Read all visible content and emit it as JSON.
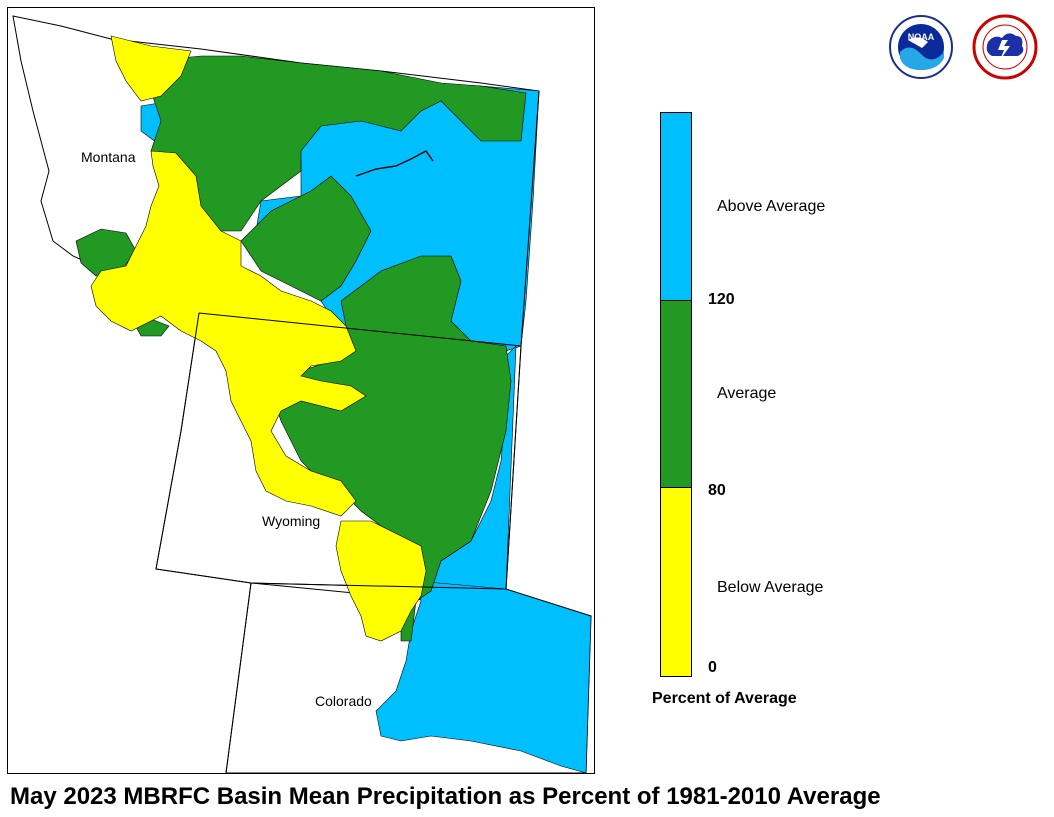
{
  "title": "May 2023 MBRFC Basin Mean Precipitation as Percent of 1981-2010 Average",
  "states": {
    "montana": "Montana",
    "wyoming": "Wyoming",
    "colorado": "Colorado"
  },
  "legend": {
    "caption": "Percent of Average",
    "categories": [
      {
        "label": "Above Average",
        "range": [
          120,
          null
        ],
        "color": "#00bfff"
      },
      {
        "label": "Average",
        "range": [
          80,
          120
        ],
        "color": "#229922"
      },
      {
        "label": "Below Average",
        "range": [
          0,
          80
        ],
        "color": "#ffff00"
      }
    ],
    "ticks": [
      "120",
      "80",
      "0"
    ]
  },
  "logos": [
    {
      "name": "NOAA",
      "icon": "noaa-logo-icon",
      "text": "NOAA",
      "ring_text": "NATIONAL OCEANIC AND ATMOSPHERIC ADMINISTRATION"
    },
    {
      "name": "National Weather Service",
      "icon": "nws-logo-icon",
      "ring_text": "NATIONAL WEATHER SERVICE"
    }
  ],
  "colors": {
    "above": "#00bfff",
    "average": "#229922",
    "below": "#ffff00",
    "border": "#000000"
  }
}
